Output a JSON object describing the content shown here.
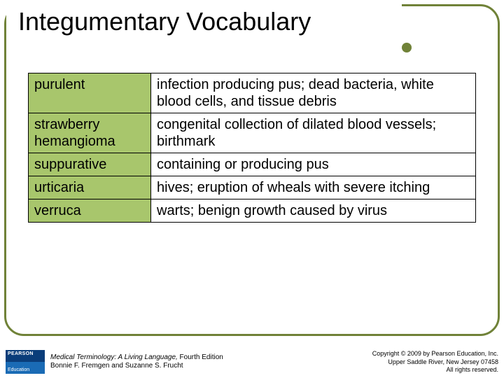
{
  "title": "Integumentary Vocabulary",
  "table": {
    "term_bg": "#a8c66c",
    "def_bg": "#ffffff",
    "border_color": "#000000",
    "font_size": 20,
    "rows": [
      {
        "term": "purulent",
        "definition": "infection producing pus; dead bacteria, white blood cells, and tissue debris"
      },
      {
        "term": "strawberry hemangioma",
        "definition": "congenital collection of dilated blood vessels; birthmark"
      },
      {
        "term": "suppurative",
        "definition": "containing or producing pus"
      },
      {
        "term": "urticaria",
        "definition": "hives; eruption of wheals with severe itching"
      },
      {
        "term": "verruca",
        "definition": "warts; benign growth caused by virus"
      }
    ]
  },
  "frame": {
    "border_color": "#708238",
    "dot_color": "#708238"
  },
  "footer": {
    "logo_top": "PEARSON",
    "logo_bottom": "Education",
    "book_title": "Medical Terminology: A Living Language,",
    "edition": " Fourth Edition",
    "authors": "Bonnie F. Fremgen and Suzanne S. Frucht",
    "copyright_line1": "Copyright © 2009 by Pearson Education, Inc.",
    "copyright_line2": "Upper Saddle River, New Jersey 07458",
    "copyright_line3": "All rights reserved."
  }
}
